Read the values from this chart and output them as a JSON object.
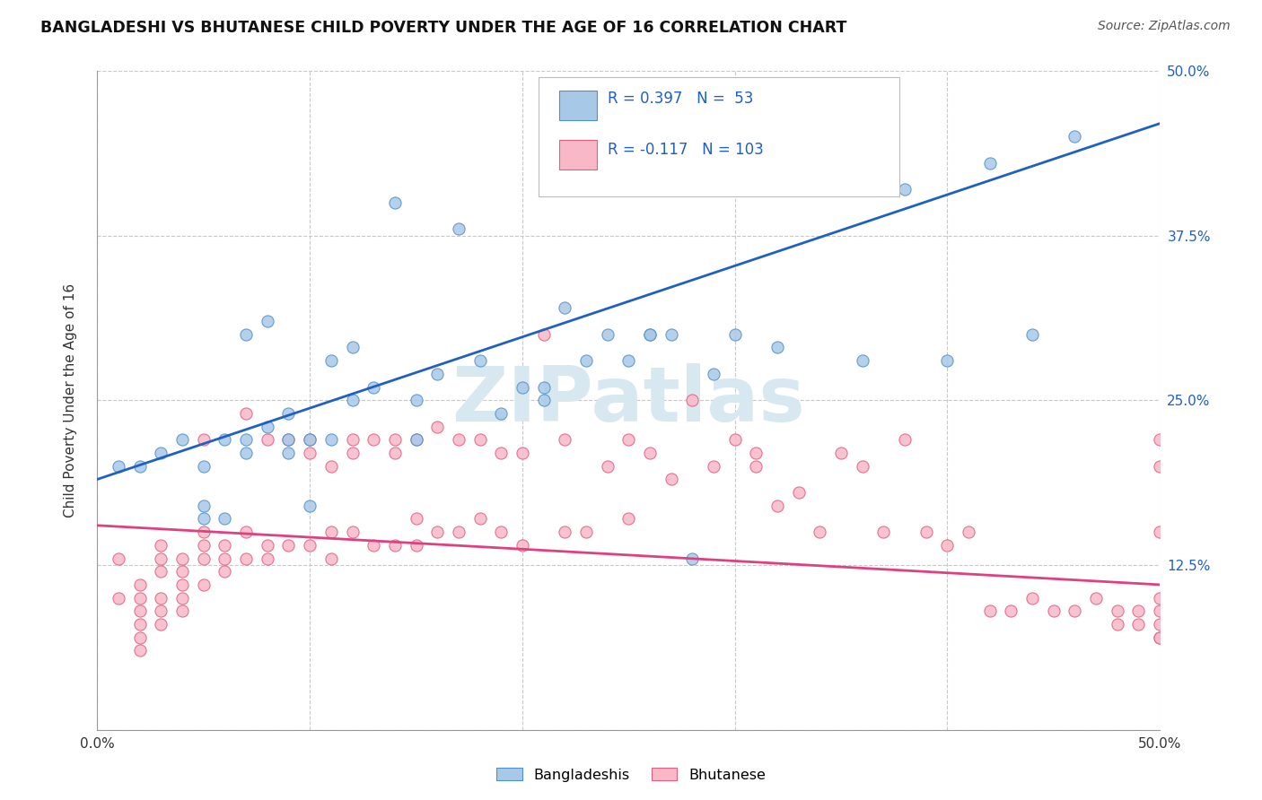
{
  "title": "BANGLADESHI VS BHUTANESE CHILD POVERTY UNDER THE AGE OF 16 CORRELATION CHART",
  "source": "Source: ZipAtlas.com",
  "ylabel": "Child Poverty Under the Age of 16",
  "xlim": [
    0.0,
    0.5
  ],
  "ylim": [
    0.0,
    0.5
  ],
  "blue_color": "#a8c8e8",
  "blue_edge_color": "#5090c8",
  "pink_color": "#f8b8c8",
  "pink_edge_color": "#e06080",
  "line_blue_color": "#2060c0",
  "line_pink_color": "#e04080",
  "legend_text_color": "#2060c0",
  "watermark_color": "#d8e8f0",
  "background_color": "#ffffff",
  "grid_color": "#c8c8c8",
  "blue_line_y0": 0.19,
  "blue_line_y1": 0.46,
  "pink_line_y0": 0.155,
  "pink_line_y1": 0.11,
  "bangladeshi_x": [
    0.01,
    0.02,
    0.03,
    0.04,
    0.05,
    0.05,
    0.05,
    0.06,
    0.06,
    0.07,
    0.07,
    0.07,
    0.08,
    0.08,
    0.09,
    0.09,
    0.09,
    0.1,
    0.1,
    0.11,
    0.11,
    0.12,
    0.12,
    0.13,
    0.14,
    0.15,
    0.15,
    0.16,
    0.17,
    0.18,
    0.19,
    0.2,
    0.21,
    0.21,
    0.22,
    0.23,
    0.24,
    0.25,
    0.26,
    0.27,
    0.28,
    0.29,
    0.3,
    0.32,
    0.34,
    0.36,
    0.38,
    0.4,
    0.42,
    0.44,
    0.46,
    0.3,
    0.26
  ],
  "bangladeshi_y": [
    0.2,
    0.2,
    0.21,
    0.22,
    0.16,
    0.17,
    0.2,
    0.16,
    0.22,
    0.21,
    0.22,
    0.3,
    0.23,
    0.31,
    0.21,
    0.22,
    0.24,
    0.17,
    0.22,
    0.22,
    0.28,
    0.25,
    0.29,
    0.26,
    0.4,
    0.22,
    0.25,
    0.27,
    0.38,
    0.28,
    0.24,
    0.26,
    0.25,
    0.26,
    0.32,
    0.28,
    0.3,
    0.28,
    0.3,
    0.3,
    0.13,
    0.27,
    0.3,
    0.29,
    0.43,
    0.28,
    0.41,
    0.28,
    0.43,
    0.3,
    0.45,
    0.43,
    0.3
  ],
  "bhutanese_x": [
    0.01,
    0.01,
    0.02,
    0.02,
    0.02,
    0.02,
    0.02,
    0.02,
    0.03,
    0.03,
    0.03,
    0.03,
    0.03,
    0.03,
    0.04,
    0.04,
    0.04,
    0.04,
    0.04,
    0.05,
    0.05,
    0.05,
    0.05,
    0.05,
    0.06,
    0.06,
    0.06,
    0.07,
    0.07,
    0.07,
    0.08,
    0.08,
    0.08,
    0.09,
    0.09,
    0.1,
    0.1,
    0.1,
    0.11,
    0.11,
    0.11,
    0.12,
    0.12,
    0.12,
    0.13,
    0.13,
    0.14,
    0.14,
    0.14,
    0.15,
    0.15,
    0.15,
    0.16,
    0.16,
    0.17,
    0.17,
    0.18,
    0.18,
    0.19,
    0.19,
    0.2,
    0.2,
    0.21,
    0.22,
    0.22,
    0.23,
    0.24,
    0.25,
    0.25,
    0.26,
    0.27,
    0.28,
    0.29,
    0.3,
    0.31,
    0.32,
    0.33,
    0.34,
    0.35,
    0.36,
    0.37,
    0.38,
    0.39,
    0.4,
    0.41,
    0.42,
    0.43,
    0.44,
    0.45,
    0.46,
    0.47,
    0.48,
    0.48,
    0.49,
    0.49,
    0.5,
    0.5,
    0.5,
    0.5,
    0.5,
    0.5,
    0.5,
    0.5,
    0.31
  ],
  "bhutanese_y": [
    0.13,
    0.1,
    0.11,
    0.1,
    0.09,
    0.08,
    0.07,
    0.06,
    0.14,
    0.13,
    0.12,
    0.1,
    0.09,
    0.08,
    0.13,
    0.12,
    0.11,
    0.1,
    0.09,
    0.22,
    0.15,
    0.14,
    0.13,
    0.11,
    0.14,
    0.13,
    0.12,
    0.24,
    0.15,
    0.13,
    0.22,
    0.14,
    0.13,
    0.22,
    0.14,
    0.22,
    0.21,
    0.14,
    0.2,
    0.15,
    0.13,
    0.22,
    0.21,
    0.15,
    0.22,
    0.14,
    0.22,
    0.21,
    0.14,
    0.22,
    0.16,
    0.14,
    0.23,
    0.15,
    0.22,
    0.15,
    0.22,
    0.16,
    0.21,
    0.15,
    0.21,
    0.14,
    0.3,
    0.22,
    0.15,
    0.15,
    0.2,
    0.22,
    0.16,
    0.21,
    0.19,
    0.25,
    0.2,
    0.22,
    0.2,
    0.17,
    0.18,
    0.15,
    0.21,
    0.2,
    0.15,
    0.22,
    0.15,
    0.14,
    0.15,
    0.09,
    0.09,
    0.1,
    0.09,
    0.09,
    0.1,
    0.09,
    0.08,
    0.09,
    0.08,
    0.22,
    0.2,
    0.15,
    0.1,
    0.09,
    0.08,
    0.07,
    0.07,
    0.21
  ]
}
